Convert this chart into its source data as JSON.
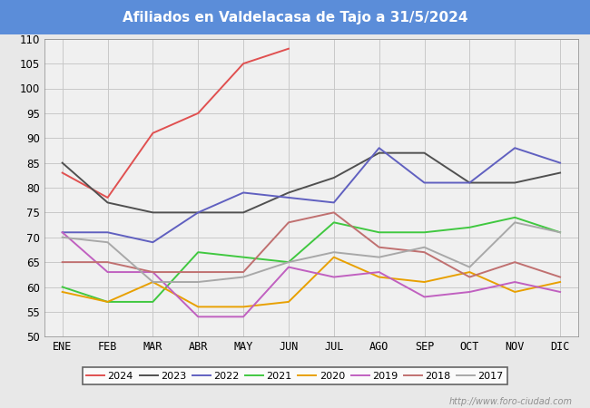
{
  "title": "Afiliados en Valdelacasa de Tajo a 31/5/2024",
  "title_color": "#ffffff",
  "title_bg_color": "#5b8dd9",
  "ylim": [
    50,
    110
  ],
  "yticks": [
    50,
    55,
    60,
    65,
    70,
    75,
    80,
    85,
    90,
    95,
    100,
    105,
    110
  ],
  "months": [
    "ENE",
    "FEB",
    "MAR",
    "ABR",
    "MAY",
    "JUN",
    "JUL",
    "AGO",
    "SEP",
    "OCT",
    "NOV",
    "DIC"
  ],
  "series": {
    "2024": {
      "color": "#e05050",
      "data": [
        83,
        78,
        91,
        95,
        105,
        108,
        null,
        null,
        null,
        null,
        null,
        null
      ]
    },
    "2023": {
      "color": "#505050",
      "data": [
        85,
        77,
        75,
        75,
        75,
        79,
        82,
        87,
        87,
        81,
        81,
        83
      ]
    },
    "2022": {
      "color": "#6060c0",
      "data": [
        71,
        71,
        69,
        75,
        79,
        78,
        77,
        88,
        81,
        81,
        88,
        85
      ]
    },
    "2021": {
      "color": "#40c840",
      "data": [
        60,
        57,
        57,
        67,
        66,
        65,
        73,
        71,
        71,
        72,
        74,
        71
      ]
    },
    "2020": {
      "color": "#e8a000",
      "data": [
        59,
        57,
        61,
        56,
        56,
        57,
        66,
        62,
        61,
        63,
        59,
        61
      ]
    },
    "2019": {
      "color": "#c060c0",
      "data": [
        71,
        63,
        63,
        54,
        54,
        64,
        62,
        63,
        58,
        59,
        61,
        59
      ]
    },
    "2018": {
      "color": "#c07070",
      "data": [
        65,
        65,
        63,
        63,
        63,
        73,
        75,
        68,
        67,
        62,
        65,
        62
      ]
    },
    "2017": {
      "color": "#a8a8a8",
      "data": [
        70,
        69,
        61,
        61,
        62,
        65,
        67,
        66,
        68,
        64,
        73,
        71
      ]
    }
  },
  "legend_order": [
    "2024",
    "2023",
    "2022",
    "2021",
    "2020",
    "2019",
    "2018",
    "2017"
  ],
  "watermark": "http://www.foro-ciudad.com",
  "outer_bg_color": "#e8e8e8",
  "plot_bg_color": "#f0f0f0",
  "grid_color": "#c8c8c8"
}
